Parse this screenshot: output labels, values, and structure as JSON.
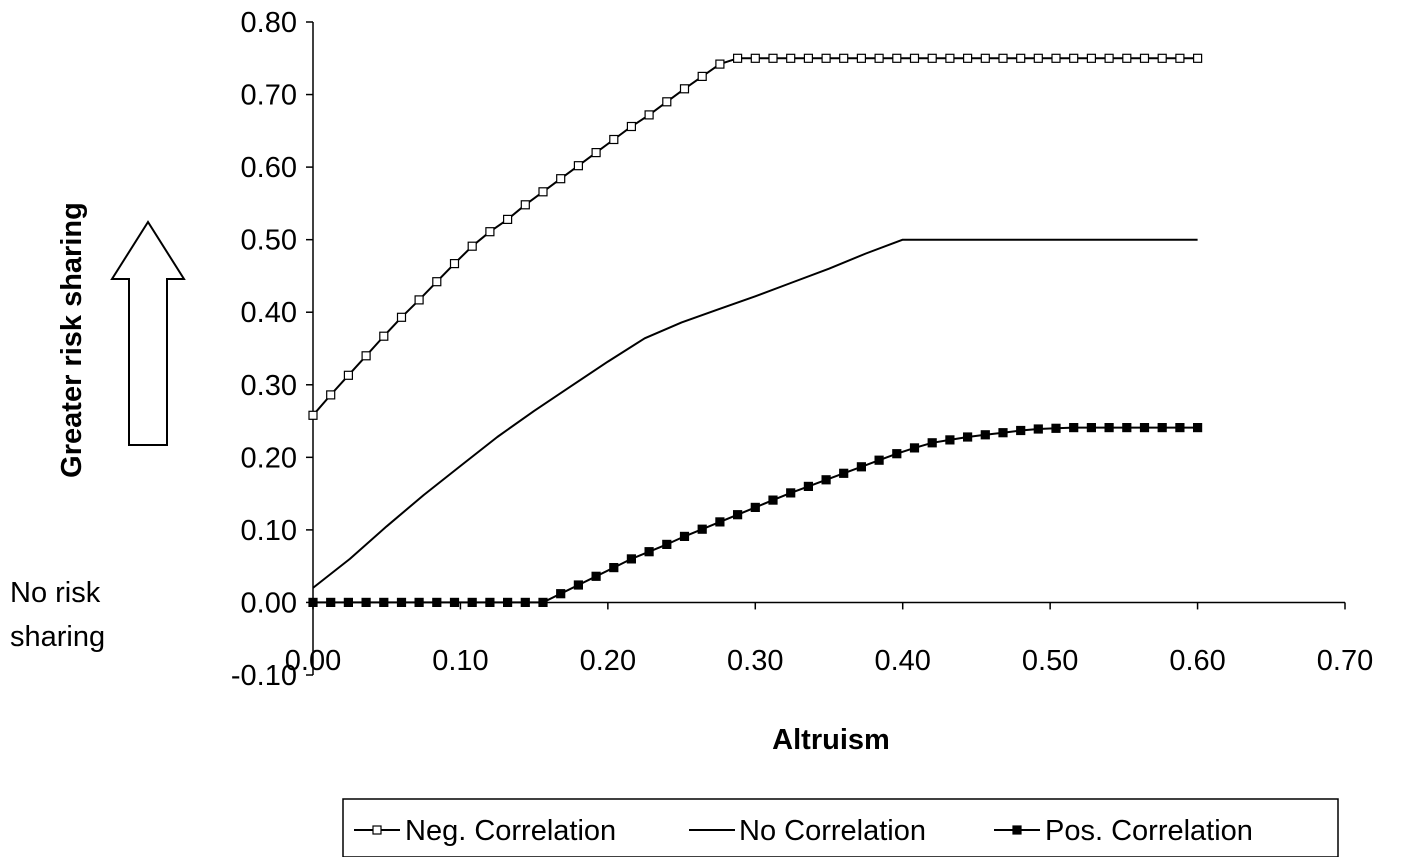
{
  "chart_data": {
    "type": "line",
    "title": "",
    "xlabel": "Altruism",
    "ylabel": "Greater risk sharing",
    "no_sharing_label": [
      "No risk",
      "sharing"
    ],
    "xlim": [
      0,
      0.7
    ],
    "ylim": [
      -0.1,
      0.8
    ],
    "x_ticks": [
      "0.00",
      "0.10",
      "0.20",
      "0.30",
      "0.40",
      "0.50",
      "0.60",
      "0.70"
    ],
    "y_ticks": [
      "0.80",
      "0.70",
      "0.60",
      "0.50",
      "0.40",
      "0.30",
      "0.20",
      "0.10",
      "0.00",
      "-0.10"
    ],
    "grid": false,
    "legend_position": "bottom",
    "series": [
      {
        "name": "Neg. Correlation",
        "marker": "hollow-square",
        "x": [
          0.0,
          0.012,
          0.024,
          0.036,
          0.048,
          0.06,
          0.072,
          0.084,
          0.096,
          0.108,
          0.12,
          0.132,
          0.144,
          0.156,
          0.168,
          0.18,
          0.192,
          0.204,
          0.216,
          0.228,
          0.24,
          0.252,
          0.264,
          0.276,
          0.288,
          0.3,
          0.312,
          0.324,
          0.336,
          0.348,
          0.36,
          0.372,
          0.384,
          0.396,
          0.408,
          0.42,
          0.432,
          0.444,
          0.456,
          0.468,
          0.48,
          0.492,
          0.504,
          0.516,
          0.528,
          0.54,
          0.552,
          0.564,
          0.576,
          0.588,
          0.6
        ],
        "y": [
          0.258,
          0.286,
          0.313,
          0.34,
          0.367,
          0.393,
          0.417,
          0.442,
          0.467,
          0.491,
          0.511,
          0.528,
          0.548,
          0.566,
          0.584,
          0.602,
          0.62,
          0.638,
          0.656,
          0.672,
          0.69,
          0.708,
          0.725,
          0.742,
          0.75,
          0.75,
          0.75,
          0.75,
          0.75,
          0.75,
          0.75,
          0.75,
          0.75,
          0.75,
          0.75,
          0.75,
          0.75,
          0.75,
          0.75,
          0.75,
          0.75,
          0.75,
          0.75,
          0.75,
          0.75,
          0.75,
          0.75,
          0.75,
          0.75,
          0.75,
          0.75
        ]
      },
      {
        "name": "No Correlation",
        "marker": "none",
        "x": [
          0.0,
          0.025,
          0.05,
          0.075,
          0.1,
          0.125,
          0.15,
          0.175,
          0.2,
          0.225,
          0.25,
          0.275,
          0.3,
          0.325,
          0.35,
          0.375,
          0.4,
          0.425,
          0.45,
          0.475,
          0.5,
          0.525,
          0.55,
          0.575,
          0.6
        ],
        "y": [
          0.02,
          0.06,
          0.105,
          0.148,
          0.188,
          0.228,
          0.264,
          0.298,
          0.332,
          0.364,
          0.386,
          0.404,
          0.422,
          0.441,
          0.46,
          0.481,
          0.5,
          0.5,
          0.5,
          0.5,
          0.5,
          0.5,
          0.5,
          0.5,
          0.5
        ]
      },
      {
        "name": "Pos. Correlation",
        "marker": "filled-square",
        "x": [
          0.0,
          0.012,
          0.024,
          0.036,
          0.048,
          0.06,
          0.072,
          0.084,
          0.096,
          0.108,
          0.12,
          0.132,
          0.144,
          0.156,
          0.168,
          0.18,
          0.192,
          0.204,
          0.216,
          0.228,
          0.24,
          0.252,
          0.264,
          0.276,
          0.288,
          0.3,
          0.312,
          0.324,
          0.336,
          0.348,
          0.36,
          0.372,
          0.384,
          0.396,
          0.408,
          0.42,
          0.432,
          0.444,
          0.456,
          0.468,
          0.48,
          0.492,
          0.504,
          0.516,
          0.528,
          0.54,
          0.552,
          0.564,
          0.576,
          0.588,
          0.6
        ],
        "y": [
          0.0,
          0.0,
          0.0,
          0.0,
          0.0,
          0.0,
          0.0,
          0.0,
          0.0,
          0.0,
          0.0,
          0.0,
          0.0,
          0.0,
          0.012,
          0.024,
          0.036,
          0.048,
          0.06,
          0.07,
          0.08,
          0.091,
          0.101,
          0.111,
          0.121,
          0.131,
          0.141,
          0.151,
          0.16,
          0.169,
          0.178,
          0.187,
          0.196,
          0.205,
          0.213,
          0.22,
          0.224,
          0.228,
          0.231,
          0.234,
          0.237,
          0.239,
          0.24,
          0.241,
          0.241,
          0.241,
          0.241,
          0.241,
          0.241,
          0.241,
          0.241
        ]
      }
    ]
  }
}
